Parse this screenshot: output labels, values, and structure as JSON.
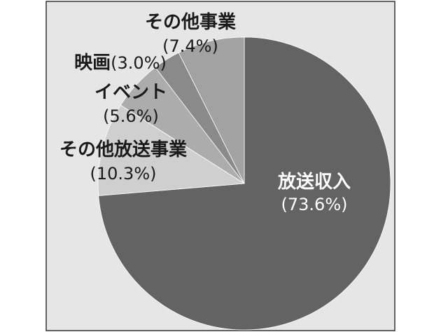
{
  "chart_data": {
    "type": "pie",
    "title": "",
    "unit": "%",
    "slices": [
      {
        "label": "放送収入",
        "value_text": "(73.6%)",
        "value": 73.6,
        "color": "#636363",
        "text_color": "#ffffff"
      },
      {
        "label": "その他放送事業",
        "value_text": "(10.3%)",
        "value": 10.3,
        "color": "#cfcfcf",
        "text_color": "#1a1a1a"
      },
      {
        "label": "イベント",
        "value_text": "(5.6%)",
        "value": 5.6,
        "color": "#acacac",
        "text_color": "#1a1a1a"
      },
      {
        "label": "映画",
        "value_text": "(3.0%)",
        "value": 3.0,
        "color": "#8a8a8a",
        "text_color": "#1a1a1a"
      },
      {
        "label": "その他事業",
        "value_text": "(7.4%)",
        "value": 7.4,
        "color": "#a2a2a2",
        "text_color": "#1a1a1a"
      }
    ],
    "start_angle": "12 o'clock",
    "direction": "clockwise",
    "background": "#e6e6e6",
    "frame": "#333333"
  }
}
